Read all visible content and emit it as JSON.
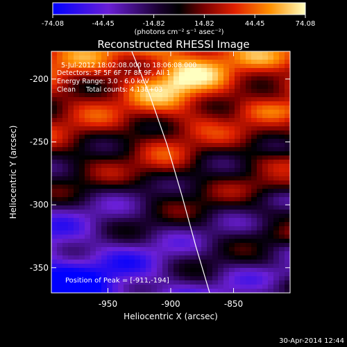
{
  "chart_data": {
    "type": "heatmap",
    "title": "Reconstructed RHESSI Image",
    "xlabel": "Heliocentric X (arcsec)",
    "ylabel": "Heliocentric Y (arcsec)",
    "xlim": [
      -995,
      -805
    ],
    "ylim": [
      -370,
      -178
    ],
    "x_ticks": [
      -950,
      -900,
      -850
    ],
    "x_tick_labels": [
      "-950",
      "-900",
      "-850"
    ],
    "y_ticks": [
      -200,
      -250,
      -300,
      -350
    ],
    "y_tick_labels": [
      "-200",
      "-250",
      "-300",
      "-350"
    ],
    "colorbar": {
      "min": -74.08,
      "max": 74.08,
      "tick_values": [
        -74.08,
        -44.45,
        -14.82,
        14.82,
        44.45,
        74.08
      ],
      "tick_labels": [
        "-74.08",
        "-44.45",
        "-14.82",
        "14.82",
        "44.45",
        "74.08"
      ],
      "units_label": "(photons cm⁻² s⁻¹ asec⁻²)"
    },
    "colors": {
      "low": "#0000ff",
      "mid_low": "#8020c0",
      "zero": "#000000",
      "mid_high": "#e02000",
      "high": "#ffff80"
    },
    "limb_line": {
      "x": [
        -931,
        -917,
        -903,
        -891,
        -880,
        -869
      ],
      "y": [
        -178,
        -212,
        -252,
        -293,
        -333,
        -370
      ]
    },
    "annotations": [
      "5-Jul-2012 18:02:08.000 to 18:06:08.000",
      "Detectors: 3F 5F 6F 7F 8F 9F, All 1",
      "Energy Range: 3.0 - 6.0 keV",
      "Clean     Total counts: 4.13E+03"
    ],
    "peak_label": "Position of Peak = [-911,-194]",
    "peak": {
      "x": -911,
      "y": -194
    },
    "timestamp": "30-Apr-2014 12:44"
  }
}
